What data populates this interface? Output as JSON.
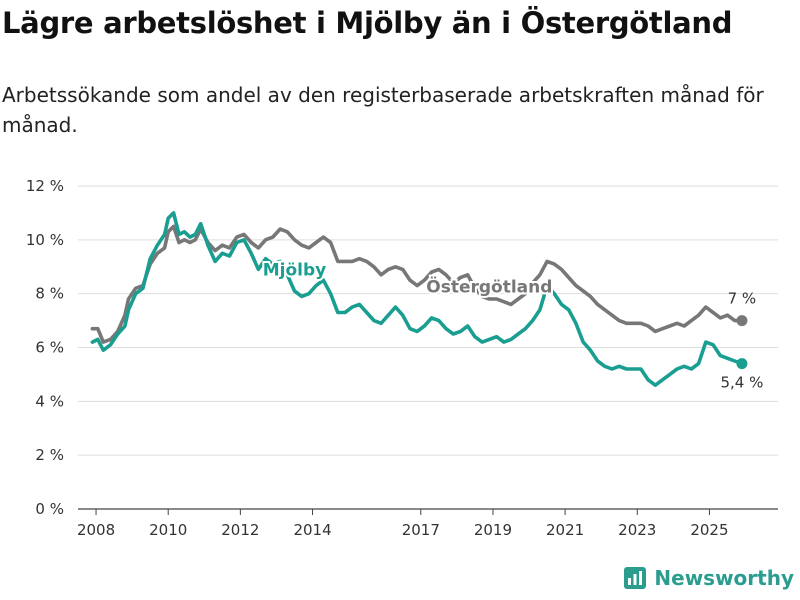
{
  "title": "Lägre arbetslöshet i Mjölby än i Östergötland",
  "subtitle": "Arbetssökande som andel av den registerbaserade arbetskraften månad för månad.",
  "brand": "Newsworthy",
  "chart_data": {
    "type": "line",
    "title": "Lägre arbetslöshet i Mjölby än i Östergötland",
    "ylim": [
      0,
      12
    ],
    "xlim": [
      2007.5,
      2026.9
    ],
    "y_ticks": [
      0,
      2,
      4,
      6,
      8,
      10,
      12
    ],
    "y_tick_labels": [
      "0 %",
      "2 %",
      "4 %",
      "6 %",
      "8 %",
      "10 %",
      "12 %"
    ],
    "x_ticks": [
      2008,
      2010,
      2012,
      2014,
      2017,
      2019,
      2021,
      2023,
      2025
    ],
    "x_tick_labels": [
      "2008",
      "2010",
      "2012",
      "2014",
      "2017",
      "2019",
      "2021",
      "2023",
      "2025"
    ],
    "grid": true,
    "series": [
      {
        "name": "Östergötland",
        "color": "#777777",
        "end_label": "7 %",
        "points": [
          [
            2007.9,
            6.7
          ],
          [
            2008.05,
            6.7
          ],
          [
            2008.2,
            6.2
          ],
          [
            2008.4,
            6.3
          ],
          [
            2008.6,
            6.6
          ],
          [
            2008.8,
            7.2
          ],
          [
            2008.9,
            7.8
          ],
          [
            2009.1,
            8.2
          ],
          [
            2009.3,
            8.3
          ],
          [
            2009.5,
            9.1
          ],
          [
            2009.7,
            9.5
          ],
          [
            2009.9,
            9.7
          ],
          [
            2010.0,
            10.3
          ],
          [
            2010.15,
            10.5
          ],
          [
            2010.3,
            9.9
          ],
          [
            2010.45,
            10.0
          ],
          [
            2010.6,
            9.9
          ],
          [
            2010.75,
            10.0
          ],
          [
            2010.9,
            10.4
          ],
          [
            2011.1,
            9.9
          ],
          [
            2011.3,
            9.6
          ],
          [
            2011.5,
            9.8
          ],
          [
            2011.7,
            9.7
          ],
          [
            2011.9,
            10.1
          ],
          [
            2012.1,
            10.2
          ],
          [
            2012.3,
            9.9
          ],
          [
            2012.5,
            9.7
          ],
          [
            2012.7,
            10.0
          ],
          [
            2012.9,
            10.1
          ],
          [
            2013.1,
            10.4
          ],
          [
            2013.3,
            10.3
          ],
          [
            2013.5,
            10.0
          ],
          [
            2013.7,
            9.8
          ],
          [
            2013.9,
            9.7
          ],
          [
            2014.1,
            9.9
          ],
          [
            2014.3,
            10.1
          ],
          [
            2014.5,
            9.9
          ],
          [
            2014.7,
            9.2
          ],
          [
            2014.9,
            9.2
          ],
          [
            2015.1,
            9.2
          ],
          [
            2015.3,
            9.3
          ],
          [
            2015.5,
            9.2
          ],
          [
            2015.7,
            9.0
          ],
          [
            2015.9,
            8.7
          ],
          [
            2016.1,
            8.9
          ],
          [
            2016.3,
            9.0
          ],
          [
            2016.5,
            8.9
          ],
          [
            2016.7,
            8.5
          ],
          [
            2016.9,
            8.3
          ],
          [
            2017.1,
            8.5
          ],
          [
            2017.3,
            8.8
          ],
          [
            2017.5,
            8.9
          ],
          [
            2017.7,
            8.7
          ],
          [
            2017.9,
            8.4
          ],
          [
            2018.1,
            8.6
          ],
          [
            2018.3,
            8.7
          ],
          [
            2018.5,
            8.2
          ],
          [
            2018.7,
            7.9
          ],
          [
            2018.9,
            7.8
          ],
          [
            2019.1,
            7.8
          ],
          [
            2019.3,
            7.7
          ],
          [
            2019.5,
            7.6
          ],
          [
            2019.7,
            7.8
          ],
          [
            2019.9,
            8.0
          ],
          [
            2020.1,
            8.4
          ],
          [
            2020.3,
            8.7
          ],
          [
            2020.5,
            9.2
          ],
          [
            2020.7,
            9.1
          ],
          [
            2020.9,
            8.9
          ],
          [
            2021.1,
            8.6
          ],
          [
            2021.3,
            8.3
          ],
          [
            2021.5,
            8.1
          ],
          [
            2021.7,
            7.9
          ],
          [
            2021.9,
            7.6
          ],
          [
            2022.1,
            7.4
          ],
          [
            2022.3,
            7.2
          ],
          [
            2022.5,
            7.0
          ],
          [
            2022.7,
            6.9
          ],
          [
            2022.9,
            6.9
          ],
          [
            2023.1,
            6.9
          ],
          [
            2023.3,
            6.8
          ],
          [
            2023.5,
            6.6
          ],
          [
            2023.7,
            6.7
          ],
          [
            2023.9,
            6.8
          ],
          [
            2024.1,
            6.9
          ],
          [
            2024.3,
            6.8
          ],
          [
            2024.5,
            7.0
          ],
          [
            2024.7,
            7.2
          ],
          [
            2024.9,
            7.5
          ],
          [
            2025.1,
            7.3
          ],
          [
            2025.3,
            7.1
          ],
          [
            2025.5,
            7.2
          ],
          [
            2025.7,
            7.0
          ],
          [
            2025.9,
            7.0
          ]
        ]
      },
      {
        "name": "Mjölby",
        "color": "#1a9e92",
        "end_label": "5,4 %",
        "points": [
          [
            2007.9,
            6.2
          ],
          [
            2008.05,
            6.3
          ],
          [
            2008.2,
            5.9
          ],
          [
            2008.4,
            6.1
          ],
          [
            2008.6,
            6.5
          ],
          [
            2008.8,
            6.8
          ],
          [
            2008.9,
            7.4
          ],
          [
            2009.1,
            8.0
          ],
          [
            2009.3,
            8.2
          ],
          [
            2009.5,
            9.3
          ],
          [
            2009.7,
            9.8
          ],
          [
            2009.9,
            10.2
          ],
          [
            2010.0,
            10.8
          ],
          [
            2010.15,
            11.0
          ],
          [
            2010.3,
            10.2
          ],
          [
            2010.45,
            10.3
          ],
          [
            2010.6,
            10.1
          ],
          [
            2010.75,
            10.2
          ],
          [
            2010.9,
            10.6
          ],
          [
            2011.1,
            9.8
          ],
          [
            2011.3,
            9.2
          ],
          [
            2011.5,
            9.5
          ],
          [
            2011.7,
            9.4
          ],
          [
            2011.9,
            9.9
          ],
          [
            2012.1,
            10.0
          ],
          [
            2012.3,
            9.5
          ],
          [
            2012.5,
            8.9
          ],
          [
            2012.7,
            9.3
          ],
          [
            2012.9,
            9.1
          ],
          [
            2013.1,
            9.2
          ],
          [
            2013.3,
            8.7
          ],
          [
            2013.5,
            8.1
          ],
          [
            2013.7,
            7.9
          ],
          [
            2013.9,
            8.0
          ],
          [
            2014.1,
            8.3
          ],
          [
            2014.3,
            8.5
          ],
          [
            2014.5,
            8.0
          ],
          [
            2014.7,
            7.3
          ],
          [
            2014.9,
            7.3
          ],
          [
            2015.1,
            7.5
          ],
          [
            2015.3,
            7.6
          ],
          [
            2015.5,
            7.3
          ],
          [
            2015.7,
            7.0
          ],
          [
            2015.9,
            6.9
          ],
          [
            2016.1,
            7.2
          ],
          [
            2016.3,
            7.5
          ],
          [
            2016.5,
            7.2
          ],
          [
            2016.7,
            6.7
          ],
          [
            2016.9,
            6.6
          ],
          [
            2017.1,
            6.8
          ],
          [
            2017.3,
            7.1
          ],
          [
            2017.5,
            7.0
          ],
          [
            2017.7,
            6.7
          ],
          [
            2017.9,
            6.5
          ],
          [
            2018.1,
            6.6
          ],
          [
            2018.3,
            6.8
          ],
          [
            2018.5,
            6.4
          ],
          [
            2018.7,
            6.2
          ],
          [
            2018.9,
            6.3
          ],
          [
            2019.1,
            6.4
          ],
          [
            2019.3,
            6.2
          ],
          [
            2019.5,
            6.3
          ],
          [
            2019.7,
            6.5
          ],
          [
            2019.9,
            6.7
          ],
          [
            2020.1,
            7.0
          ],
          [
            2020.3,
            7.4
          ],
          [
            2020.5,
            8.3
          ],
          [
            2020.7,
            8.0
          ],
          [
            2020.9,
            7.6
          ],
          [
            2021.1,
            7.4
          ],
          [
            2021.3,
            6.9
          ],
          [
            2021.5,
            6.2
          ],
          [
            2021.7,
            5.9
          ],
          [
            2021.9,
            5.5
          ],
          [
            2022.1,
            5.3
          ],
          [
            2022.3,
            5.2
          ],
          [
            2022.5,
            5.3
          ],
          [
            2022.7,
            5.2
          ],
          [
            2022.9,
            5.2
          ],
          [
            2023.1,
            5.2
          ],
          [
            2023.3,
            4.8
          ],
          [
            2023.5,
            4.6
          ],
          [
            2023.7,
            4.8
          ],
          [
            2023.9,
            5.0
          ],
          [
            2024.1,
            5.2
          ],
          [
            2024.3,
            5.3
          ],
          [
            2024.5,
            5.2
          ],
          [
            2024.7,
            5.4
          ],
          [
            2024.9,
            6.2
          ],
          [
            2025.1,
            6.1
          ],
          [
            2025.3,
            5.7
          ],
          [
            2025.5,
            5.6
          ],
          [
            2025.7,
            5.5
          ],
          [
            2025.9,
            5.4
          ]
        ]
      }
    ]
  }
}
